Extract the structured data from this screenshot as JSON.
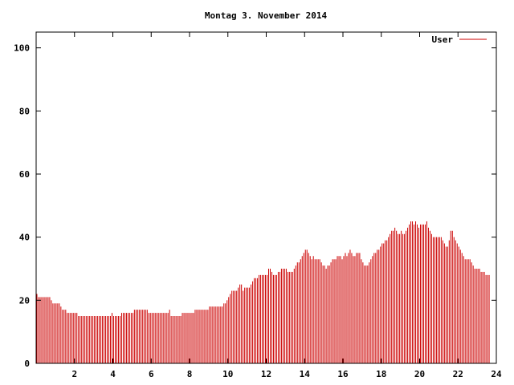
{
  "chart_data": {
    "type": "bar",
    "title": "Montag 3. November 2014",
    "xlabel": "",
    "ylabel": "",
    "xlim": [
      0,
      24
    ],
    "ylim": [
      0,
      105
    ],
    "x_ticks": [
      2,
      4,
      6,
      8,
      10,
      12,
      14,
      16,
      18,
      20,
      22,
      24
    ],
    "y_ticks": [
      0,
      20,
      40,
      60,
      80,
      100
    ],
    "grid": false,
    "legend_position": "top-right",
    "sample_interval_minutes": 5,
    "series": [
      {
        "name": "User",
        "color": "#cc0000",
        "values": [
          22,
          21,
          21,
          21,
          21,
          21,
          21,
          21,
          21,
          20,
          19,
          19,
          19,
          19,
          19,
          18,
          17,
          17,
          17,
          16,
          16,
          16,
          16,
          16,
          16,
          16,
          15,
          15,
          15,
          15,
          15,
          15,
          15,
          15,
          15,
          15,
          15,
          15,
          15,
          15,
          15,
          15,
          15,
          15,
          15,
          15,
          15,
          16,
          15,
          15,
          15,
          15,
          15,
          16,
          16,
          16,
          16,
          16,
          16,
          16,
          16,
          17,
          17,
          17,
          17,
          17,
          17,
          17,
          17,
          17,
          16,
          16,
          16,
          16,
          16,
          16,
          16,
          16,
          16,
          16,
          16,
          16,
          16,
          17,
          15,
          15,
          15,
          15,
          15,
          15,
          15,
          16,
          16,
          16,
          16,
          16,
          16,
          16,
          16,
          17,
          17,
          17,
          17,
          17,
          17,
          17,
          17,
          17,
          18,
          18,
          18,
          18,
          18,
          18,
          18,
          18,
          18,
          19,
          19,
          20,
          21,
          22,
          23,
          23,
          23,
          23,
          24,
          25,
          25,
          23,
          24,
          24,
          24,
          24,
          25,
          26,
          27,
          27,
          27,
          28,
          28,
          28,
          28,
          28,
          28,
          30,
          30,
          29,
          28,
          28,
          28,
          29,
          29,
          30,
          30,
          30,
          30,
          29,
          29,
          29,
          29,
          30,
          31,
          32,
          32,
          33,
          34,
          35,
          36,
          36,
          35,
          34,
          33,
          34,
          33,
          33,
          33,
          33,
          32,
          31,
          31,
          30,
          31,
          31,
          32,
          33,
          33,
          33,
          34,
          34,
          34,
          33,
          34,
          35,
          34,
          35,
          36,
          35,
          34,
          34,
          35,
          35,
          35,
          33,
          32,
          31,
          31,
          31,
          32,
          33,
          34,
          35,
          35,
          36,
          36,
          37,
          38,
          38,
          39,
          39,
          40,
          41,
          42,
          42,
          43,
          42,
          41,
          41,
          42,
          41,
          41,
          42,
          43,
          44,
          45,
          45,
          44,
          45,
          44,
          43,
          44,
          44,
          44,
          44,
          45,
          43,
          42,
          41,
          40,
          40,
          40,
          40,
          40,
          40,
          39,
          38,
          37,
          37,
          39,
          42,
          42,
          40,
          39,
          38,
          37,
          36,
          35,
          34,
          33,
          33,
          33,
          33,
          32,
          31,
          30,
          30,
          30,
          30,
          29,
          29,
          29,
          28,
          28,
          28
        ]
      }
    ]
  }
}
